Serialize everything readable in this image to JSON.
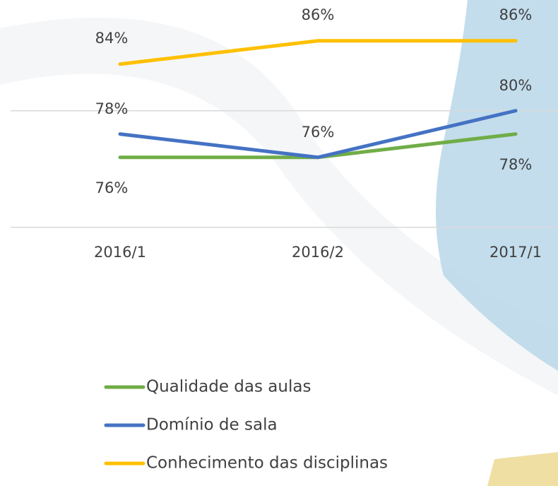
{
  "chart_data": {
    "type": "line",
    "categories": [
      "2016/1",
      "2016/2",
      "2017/1"
    ],
    "ylim": [
      70,
      89.5
    ],
    "yticks": [
      70,
      80
    ],
    "grid": true,
    "series": [
      {
        "name": "Qualidade das aulas",
        "color": "#70ad47",
        "values": [
          76,
          76,
          78
        ],
        "value_labels": [
          "76%",
          null,
          "78%"
        ]
      },
      {
        "name": "Domínio de sala",
        "color": "#4472c4",
        "values": [
          78,
          76,
          80
        ],
        "value_labels": [
          "78%",
          "76%",
          "80%"
        ]
      },
      {
        "name": "Conhecimento das disciplinas",
        "color": "#ffc000",
        "values": [
          84,
          86,
          86
        ],
        "value_labels": [
          "84%",
          "86%",
          "86%"
        ]
      }
    ]
  }
}
